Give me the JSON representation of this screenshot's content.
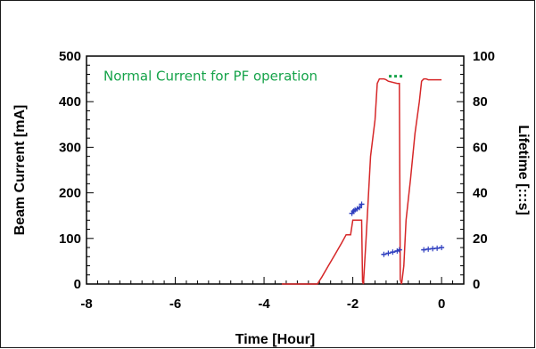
{
  "chart_data": {
    "type": "line",
    "title": "",
    "xlabel": "Time [Hour]",
    "ylabel": "Beam Current [mA]",
    "y2label": "Lifetime [:::s]",
    "xlim": [
      -8,
      0.5
    ],
    "ylim": [
      0,
      500
    ],
    "y2lim": [
      0,
      100
    ],
    "xticks": [
      -8,
      -6,
      -4,
      -2,
      0
    ],
    "yticks": [
      0,
      100,
      200,
      300,
      400,
      500
    ],
    "y2ticks": [
      0,
      20,
      40,
      60,
      80,
      100
    ],
    "grid": false,
    "annotation": {
      "text": "Normal Current for PF operation",
      "color": "#16a34a",
      "line_y": 450,
      "line_x": [
        -4.0,
        -0.85
      ]
    },
    "series": [
      {
        "axis": "left",
        "color": "#d62728",
        "x": [
          -3.6,
          -2.8,
          -2.7,
          -2.55,
          -2.4,
          -2.25,
          -2.15,
          -2.1,
          -2.05,
          -2.0,
          -1.95,
          -1.9,
          -1.85,
          -1.8,
          -1.78,
          -1.76,
          -1.7,
          -1.6,
          -1.5,
          -1.45,
          -1.4,
          -1.35,
          -1.3,
          -1.25,
          -1.2,
          -1.0,
          -0.95,
          -0.93,
          -0.9,
          -0.85,
          -0.8,
          -0.7,
          -0.6,
          -0.5,
          -0.45,
          -0.4,
          -0.35,
          -0.3,
          -0.2,
          0.0
        ],
        "values": [
          0,
          0,
          15,
          40,
          65,
          90,
          108,
          108,
          108,
          140,
          140,
          140,
          140,
          140,
          5,
          0,
          100,
          280,
          360,
          440,
          450,
          450,
          450,
          448,
          445,
          440,
          440,
          10,
          0,
          40,
          140,
          230,
          330,
          400,
          445,
          450,
          450,
          448,
          448,
          448
        ]
      },
      {
        "axis": "right",
        "color": "#2f3fbf",
        "x": [
          -2.02,
          -1.98,
          -1.95,
          -1.9,
          -1.85,
          -1.8,
          -1.3,
          -1.2,
          -1.1,
          -1.0,
          -0.95,
          -0.4,
          -0.3,
          -0.2,
          -0.1,
          0.0
        ],
        "values": [
          31,
          32,
          32.5,
          33,
          33.5,
          35,
          13,
          13.5,
          14,
          14.5,
          15,
          15,
          15.3,
          15.5,
          15.7,
          16
        ]
      }
    ]
  }
}
